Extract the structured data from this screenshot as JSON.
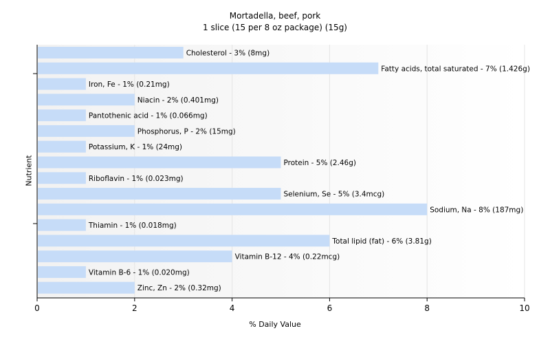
{
  "chart_data": {
    "type": "bar",
    "orientation": "horizontal",
    "title": "Mortadella, beef, pork",
    "subtitle": "1 slice (15 per 8 oz package) (15g)",
    "xlabel": "% Daily Value",
    "ylabel": "Nutrient",
    "xlim": [
      0,
      10
    ],
    "xticks": [
      "0",
      "2",
      "4",
      "6",
      "8",
      "10"
    ],
    "grid": true,
    "bar_color": "#c6dcf8",
    "categories": [
      "Cholesterol",
      "Fatty acids, total saturated",
      "Iron, Fe",
      "Niacin",
      "Pantothenic acid",
      "Phosphorus, P",
      "Potassium, K",
      "Protein",
      "Riboflavin",
      "Selenium, Se",
      "Sodium, Na",
      "Thiamin",
      "Total lipid (fat)",
      "Vitamin B-12",
      "Vitamin B-6",
      "Zinc, Zn"
    ],
    "values": [
      3,
      7,
      1,
      2,
      1,
      2,
      1,
      5,
      1,
      5,
      8,
      1,
      6,
      4,
      1,
      2
    ],
    "data_labels": [
      "Cholesterol - 3% (8mg)",
      "Fatty acids, total saturated - 7% (1.426g)",
      "Iron, Fe - 1% (0.21mg)",
      "Niacin - 2% (0.401mg)",
      "Pantothenic acid - 1% (0.066mg)",
      "Phosphorus, P - 2% (15mg)",
      "Potassium, K - 1% (24mg)",
      "Protein - 5% (2.46g)",
      "Riboflavin - 1% (0.023mg)",
      "Selenium, Se - 5% (3.4mcg)",
      "Sodium, Na - 8% (187mg)",
      "Thiamin - 1% (0.018mg)",
      "Total lipid (fat) - 6% (3.81g)",
      "Vitamin B-12 - 4% (0.22mcg)",
      "Vitamin B-6 - 1% (0.020mg)",
      "Zinc, Zn - 2% (0.32mg)"
    ]
  }
}
